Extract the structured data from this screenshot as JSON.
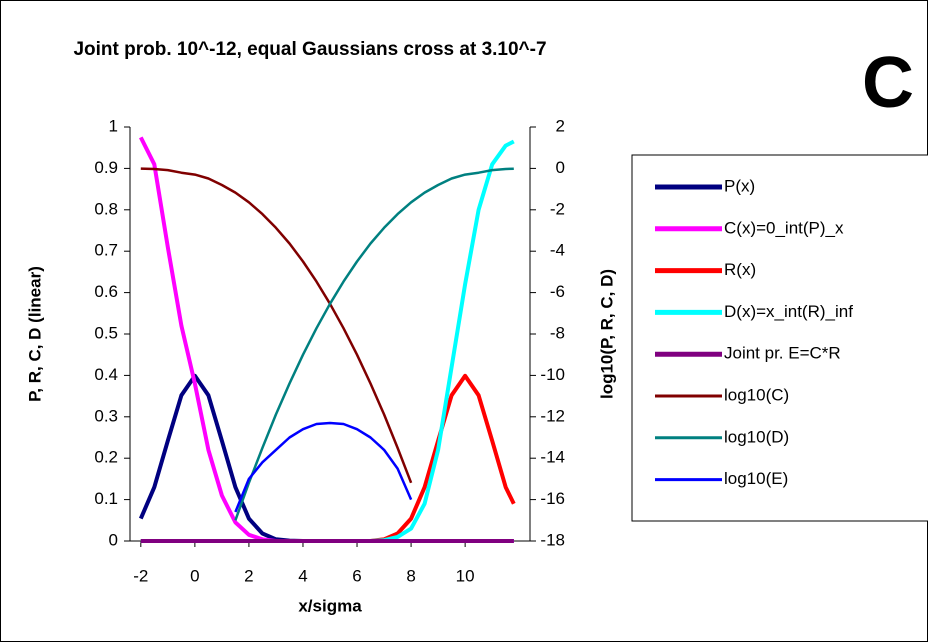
{
  "chart_data": {
    "type": "line",
    "title": "Joint prob. 10^-12, equal Gaussians cross at 3.10^-7",
    "annotation": "C",
    "xlabel": "x/sigma",
    "ylabel": "P, R, C, D (linear)",
    "y2label": "log10(P, R, C, D)",
    "x": [
      -2,
      -1.5,
      -1,
      -0.5,
      0,
      0.5,
      1,
      1.5,
      2,
      2.5,
      3,
      3.5,
      4,
      4.5,
      5,
      5.5,
      6,
      6.5,
      7,
      7.5,
      8,
      8.5,
      9,
      9.5,
      10,
      10.5,
      11,
      11.5,
      11.8
    ],
    "xlim": [
      -2.4,
      12.4
    ],
    "xticks": [
      -2,
      0,
      2,
      4,
      6,
      8,
      10
    ],
    "ylim": [
      0,
      1
    ],
    "yticks": [
      0,
      0.1,
      0.2,
      0.3,
      0.4,
      0.5,
      0.6,
      0.7,
      0.8,
      0.9,
      1
    ],
    "y2lim": [
      -18,
      2
    ],
    "y2ticks": [
      -18,
      -16,
      -14,
      -12,
      -10,
      -8,
      -6,
      -4,
      -2,
      0,
      2
    ],
    "legend": "right",
    "series": [
      {
        "name": "P(x)",
        "color": "#000080",
        "values": [
          0.054,
          0.13,
          0.242,
          0.352,
          0.399,
          0.352,
          0.242,
          0.13,
          0.054,
          0.018,
          0.004,
          0.001,
          0,
          0,
          0,
          0,
          0,
          0,
          0,
          0,
          0,
          0,
          0,
          0,
          0,
          0,
          0,
          0,
          0
        ]
      },
      {
        "name": "C(x)=0_int(P)_x",
        "color": "#ff00ff",
        "values": [
          0.975,
          0.91,
          0.71,
          0.52,
          0.38,
          0.22,
          0.11,
          0.045,
          0.015,
          0.004,
          0,
          0,
          0,
          0,
          0,
          0,
          0,
          0,
          0,
          0,
          0,
          0,
          0,
          0,
          0,
          0,
          0,
          0,
          0
        ]
      },
      {
        "name": "R(x)",
        "color": "#ff0000",
        "values": [
          0,
          0,
          0,
          0,
          0,
          0,
          0,
          0,
          0,
          0,
          0,
          0,
          0,
          0,
          0,
          0,
          0,
          0,
          0.004,
          0.018,
          0.054,
          0.13,
          0.242,
          0.352,
          0.399,
          0.352,
          0.242,
          0.13,
          0.09
        ]
      },
      {
        "name": "D(x)=x_int(R)_inf",
        "color": "#00ffff",
        "values": [
          0,
          0,
          0,
          0,
          0,
          0,
          0,
          0,
          0,
          0,
          0,
          0,
          0,
          0,
          0,
          0,
          0,
          0,
          0.002,
          0.01,
          0.03,
          0.09,
          0.22,
          0.42,
          0.62,
          0.8,
          0.91,
          0.955,
          0.965
        ]
      },
      {
        "name": "Joint pr. E=C*R",
        "color": "#800080",
        "values": [
          0,
          0,
          0,
          0,
          0,
          0,
          0,
          0,
          0,
          0,
          0,
          0,
          0,
          0,
          0,
          0,
          0,
          0,
          0,
          0,
          0,
          0,
          0,
          0,
          0,
          0,
          0,
          0,
          0
        ]
      },
      {
        "name": "log10(C)",
        "color": "#800000",
        "axis": "y2",
        "values": [
          -0.01,
          -0.03,
          -0.08,
          -0.21,
          -0.3,
          -0.49,
          -0.8,
          -1.17,
          -1.64,
          -2.21,
          -2.87,
          -3.63,
          -4.5,
          -5.47,
          -6.54,
          -7.72,
          -9.0,
          -10.39,
          -11.89,
          -13.5,
          -15.19,
          null,
          null,
          null,
          null,
          null,
          null,
          null,
          null
        ]
      },
      {
        "name": "log10(D)",
        "color": "#008080",
        "axis": "y2",
        "values": [
          null,
          null,
          null,
          null,
          null,
          null,
          null,
          -17.0,
          -15.19,
          -13.5,
          -11.89,
          -10.39,
          -9.0,
          -7.72,
          -6.54,
          -5.47,
          -4.5,
          -3.63,
          -2.87,
          -2.21,
          -1.64,
          -1.17,
          -0.8,
          -0.49,
          -0.3,
          -0.21,
          -0.08,
          -0.03,
          -0.015
        ]
      },
      {
        "name": "log10(E)",
        "color": "#0000ff",
        "axis": "y2",
        "values": [
          null,
          null,
          null,
          null,
          null,
          null,
          null,
          -16.6,
          -15.0,
          -14.2,
          -13.6,
          -13.0,
          -12.6,
          -12.35,
          -12.3,
          -12.35,
          -12.6,
          -13.0,
          -13.6,
          -14.5,
          -16.0,
          null,
          null,
          null,
          null,
          null,
          null,
          null,
          null
        ]
      }
    ]
  }
}
